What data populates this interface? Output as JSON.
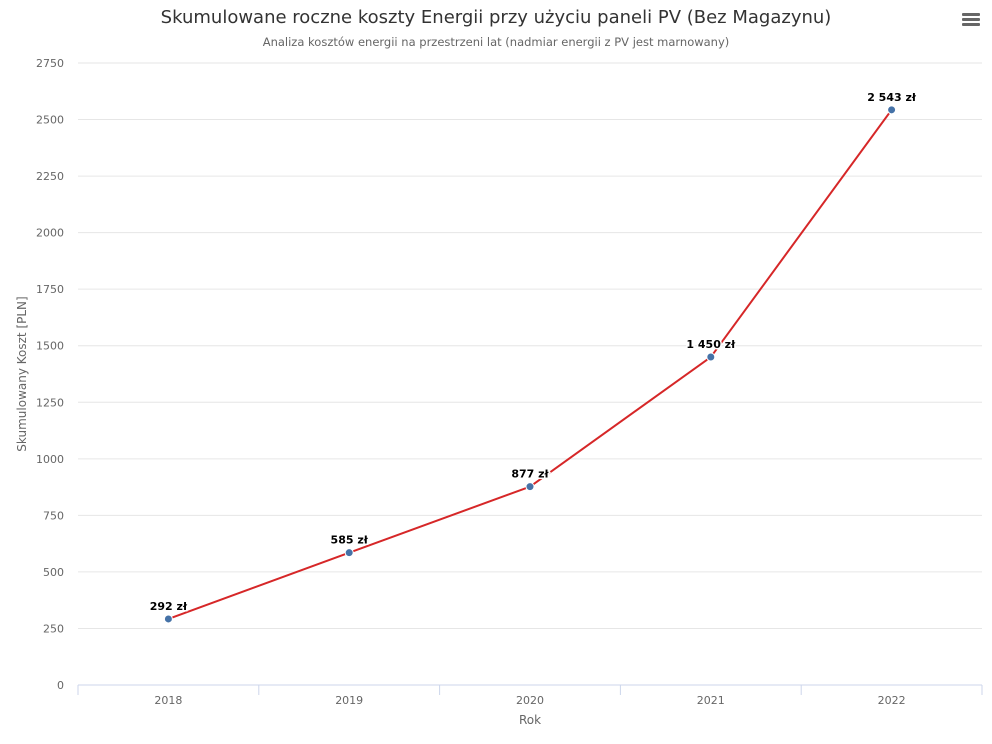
{
  "chart_data": {
    "type": "line",
    "title": "Skumulowane roczne koszty Energii przy użyciu paneli PV (Bez Magazynu)",
    "subtitle": "Analiza kosztów energii na przestrzeni lat (nadmiar energii z PV jest marnowany)",
    "xlabel": "Rok",
    "ylabel": "Skumulowany Koszt [PLN]",
    "categories": [
      "2018",
      "2019",
      "2020",
      "2021",
      "2022"
    ],
    "values": [
      292,
      585,
      877,
      1450,
      2543
    ],
    "data_labels": [
      "292 zł",
      "585 zł",
      "877 zł",
      "1 450 zł",
      "2 543 zł"
    ],
    "ylim": [
      0,
      2750
    ],
    "yticks": [
      "0",
      "250",
      "500",
      "750",
      "1000",
      "1250",
      "1500",
      "1750",
      "2000",
      "2250",
      "2500",
      "2750"
    ],
    "grid": true,
    "line_color": "#d62728",
    "marker_color": "#4572a7"
  },
  "menu": {
    "icon": "hamburger-menu-icon"
  }
}
